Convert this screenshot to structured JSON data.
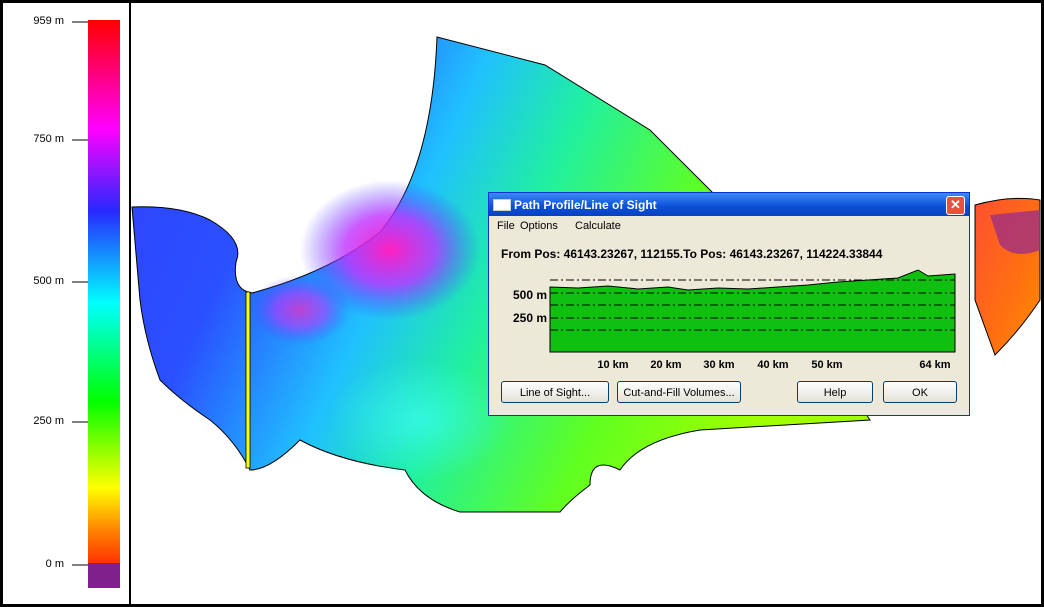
{
  "legend": {
    "ticks": [
      "959 m",
      "750 m",
      "500 m",
      "250 m",
      "0 m"
    ]
  },
  "dialog": {
    "title": "Path Profile/Line of Sight",
    "menu": [
      "File",
      "Options",
      "Calculate"
    ],
    "position": "From Pos: 46143.23267, 112155.To Pos: 46143.23267, 114224.33844",
    "profile": {
      "y_labels": [
        "500 m",
        "250 m"
      ],
      "x_labels": [
        "10 km",
        "20 km",
        "30 km",
        "40 km",
        "50 km",
        "64 km"
      ]
    },
    "buttons": [
      "Line of Sight...",
      "Cut-and-Fill Volumes...",
      "Help",
      "OK"
    ]
  }
}
